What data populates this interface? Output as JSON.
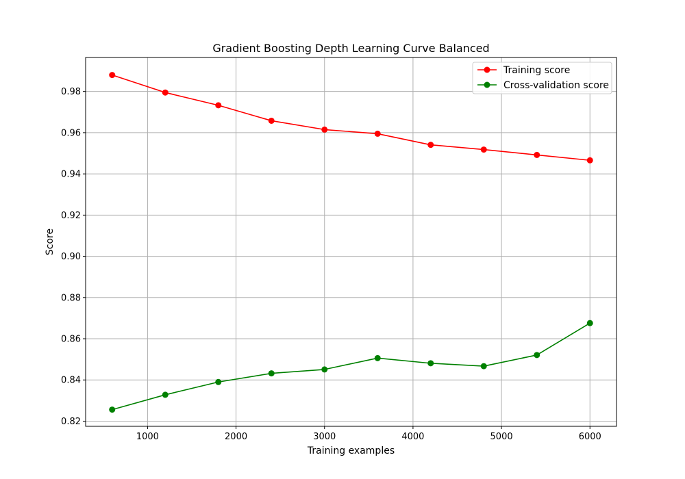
{
  "colors": {
    "training": "#ff0000",
    "validation": "#008000",
    "grid": "#b0b0b0"
  },
  "chart_data": {
    "type": "line",
    "title": "Gradient Boosting Depth Learning Curve Balanced",
    "xlabel": "Training examples",
    "ylabel": "Score",
    "xlim": [
      300,
      6300
    ],
    "ylim": [
      0.8175,
      0.9965
    ],
    "xticks": [
      1000,
      2000,
      3000,
      4000,
      5000,
      6000
    ],
    "yticks": [
      0.82,
      0.84,
      0.86,
      0.88,
      0.9,
      0.92,
      0.94,
      0.96,
      0.98
    ],
    "xtick_labels": [
      "1000",
      "2000",
      "3000",
      "4000",
      "5000",
      "6000"
    ],
    "ytick_labels": [
      "0.82",
      "0.84",
      "0.86",
      "0.88",
      "0.90",
      "0.92",
      "0.94",
      "0.96",
      "0.98"
    ],
    "grid": true,
    "legend_position": "top-right",
    "x": [
      600,
      1200,
      1800,
      2400,
      3000,
      3600,
      4200,
      4800,
      5400,
      6000
    ],
    "series": [
      {
        "name": "Training score",
        "color": "#ff0000",
        "values": [
          0.988,
          0.9795,
          0.9733,
          0.9658,
          0.9615,
          0.9595,
          0.9541,
          0.9518,
          0.9492,
          0.9466
        ]
      },
      {
        "name": "Cross-validation score",
        "color": "#008000",
        "values": [
          0.8256,
          0.8328,
          0.839,
          0.8432,
          0.8451,
          0.8506,
          0.8481,
          0.8467,
          0.8521,
          0.8676
        ]
      }
    ]
  }
}
